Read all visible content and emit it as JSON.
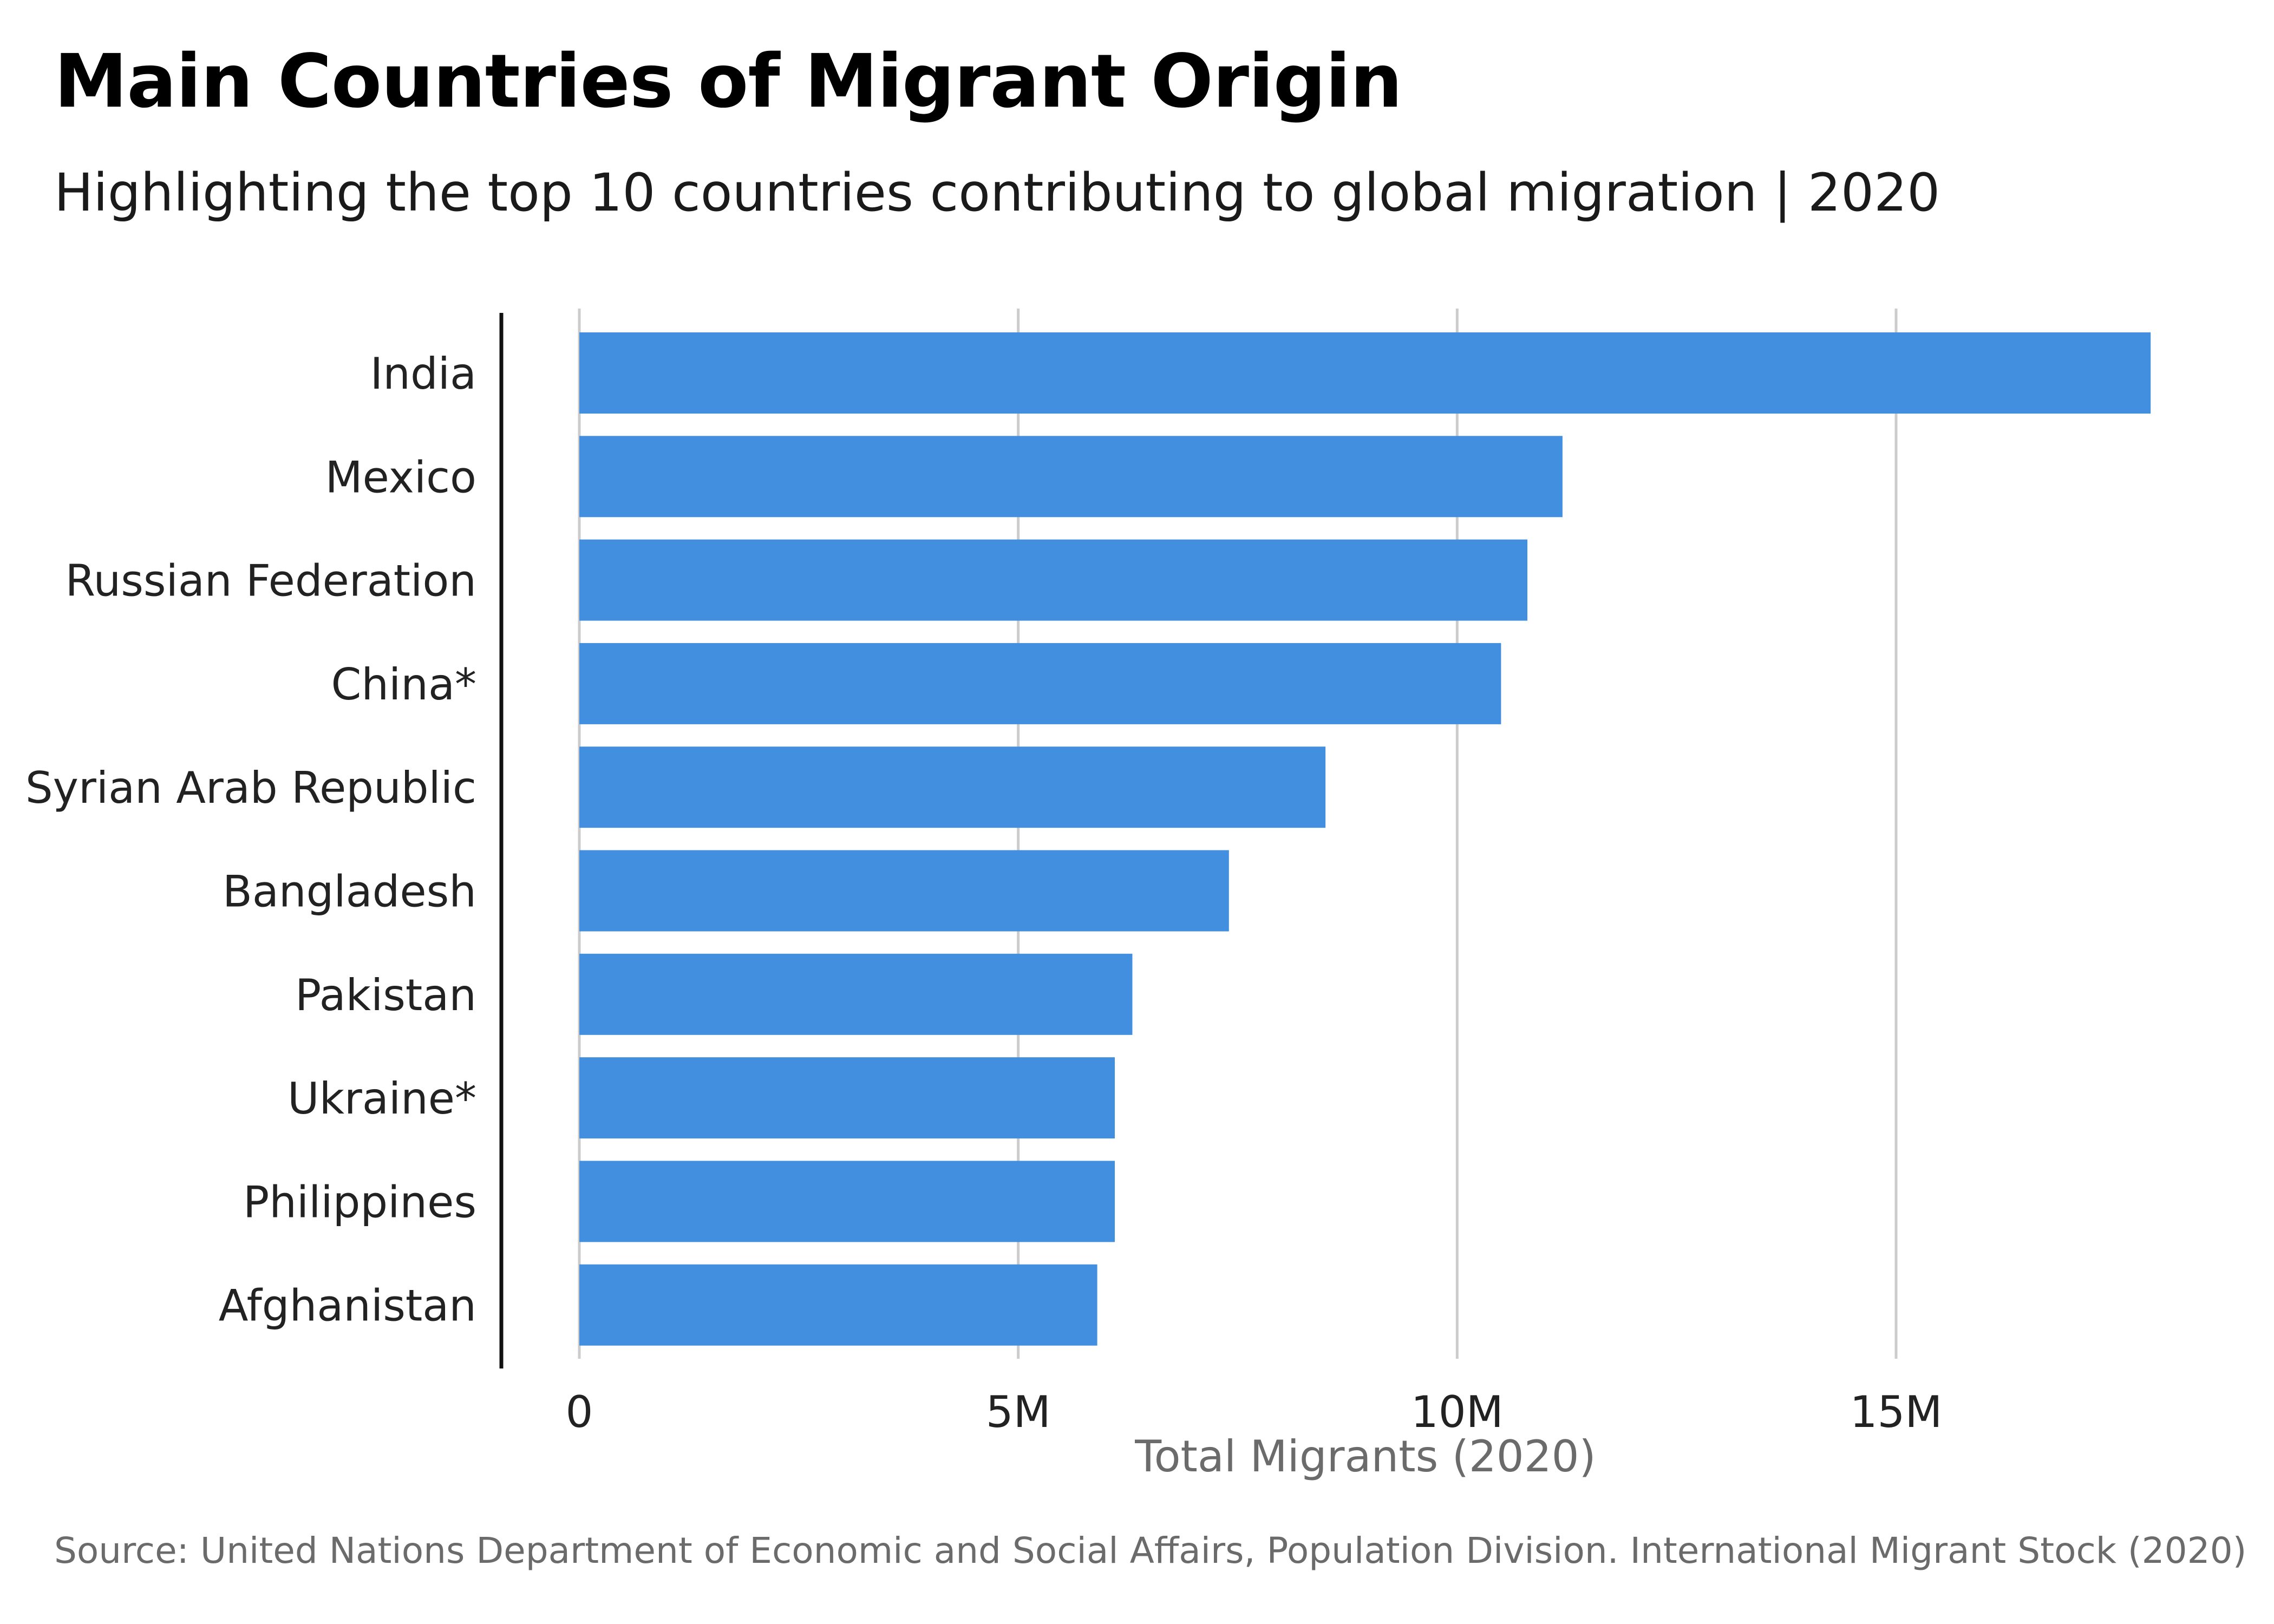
{
  "chart_data": {
    "type": "bar",
    "orientation": "horizontal",
    "title": "Main Countries of Migrant Origin",
    "subtitle": "Highlighting the top 10 countries contributing to global migration | 2020",
    "categories": [
      "India",
      "Mexico",
      "Russian Federation",
      "China*",
      "Syrian Arab Republic",
      "Bangladesh",
      "Pakistan",
      "Ukraine*",
      "Philippines",
      "Afghanistan"
    ],
    "values": [
      17900000,
      11200000,
      10800000,
      10500000,
      8500000,
      7400000,
      6300000,
      6100000,
      6100000,
      5900000
    ],
    "xlabel": "Total Migrants (2020)",
    "ylabel": "",
    "xlim": [
      0,
      18000000
    ],
    "xticks": [
      0,
      5000000,
      10000000,
      15000000
    ],
    "xtick_labels": [
      "0",
      "5M",
      "10M",
      "15M"
    ],
    "grid": true,
    "legend": "none",
    "bar_color": "#428fdf",
    "grid_color": "#cccccc",
    "axis_color": "#111111",
    "source": "Source: United Nations Department of Economic and Social Affairs, Population Division. International Migrant Stock (2020)"
  }
}
